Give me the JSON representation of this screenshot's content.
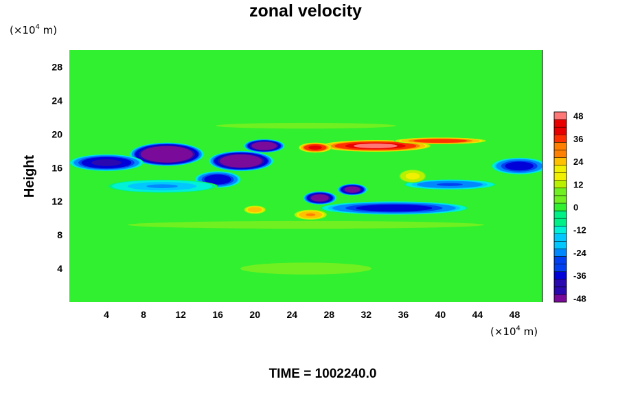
{
  "chart_data": {
    "type": "heatmap",
    "title": "zonal velocity",
    "ylabel": "Height",
    "y_unit": {
      "prefix": "(×10",
      "exp": "4",
      "suffix": " m)"
    },
    "x_unit": {
      "prefix": "(×10",
      "exp": "4",
      "suffix": " m)"
    },
    "xlim": [
      0,
      51
    ],
    "ylim": [
      0,
      30
    ],
    "x_ticks": [
      4,
      8,
      12,
      16,
      20,
      24,
      28,
      32,
      36,
      40,
      44,
      48
    ],
    "y_ticks": [
      4,
      8,
      12,
      16,
      20,
      24,
      28
    ],
    "colorbar": {
      "range": [
        -50,
        50
      ],
      "step": 4,
      "tick_values": [
        48,
        36,
        24,
        12,
        0,
        -12,
        -24,
        -36,
        -48
      ],
      "stops": [
        {
          "v": -50,
          "color": "#7a0a9a"
        },
        {
          "v": -44,
          "color": "#2a0ab0"
        },
        {
          "v": -38,
          "color": "#0000d8"
        },
        {
          "v": -32,
          "color": "#0040f0"
        },
        {
          "v": -26,
          "color": "#0088ff"
        },
        {
          "v": -20,
          "color": "#00c8ff"
        },
        {
          "v": -14,
          "color": "#00f0d8"
        },
        {
          "v": -8,
          "color": "#00f088"
        },
        {
          "v": -2,
          "color": "#30f030"
        },
        {
          "v": 4,
          "color": "#70f020"
        },
        {
          "v": 10,
          "color": "#b8f000"
        },
        {
          "v": 16,
          "color": "#f0f000"
        },
        {
          "v": 22,
          "color": "#ffc000"
        },
        {
          "v": 28,
          "color": "#ff8000"
        },
        {
          "v": 34,
          "color": "#ff3000"
        },
        {
          "v": 40,
          "color": "#e80000"
        },
        {
          "v": 46,
          "color": "#ff7878"
        },
        {
          "v": 50,
          "color": "#ffb0b0"
        }
      ]
    },
    "features": [
      {
        "x": 10.5,
        "y": 17.6,
        "rx": 4.0,
        "ry": 1.4,
        "a": -62
      },
      {
        "x": 4.0,
        "y": 16.6,
        "rx": 4.0,
        "ry": 1.0,
        "a": -44
      },
      {
        "x": 18.5,
        "y": 16.8,
        "rx": 3.5,
        "ry": 1.2,
        "a": -58
      },
      {
        "x": 21.0,
        "y": 18.6,
        "rx": 2.2,
        "ry": 0.8,
        "a": -56
      },
      {
        "x": 16.0,
        "y": 14.6,
        "rx": 2.5,
        "ry": 1.0,
        "a": -40
      },
      {
        "x": 10.0,
        "y": 13.8,
        "rx": 6.0,
        "ry": 0.8,
        "a": -22
      },
      {
        "x": 35.0,
        "y": 11.2,
        "rx": 8.0,
        "ry": 0.8,
        "a": -38
      },
      {
        "x": 27.0,
        "y": 12.4,
        "rx": 1.8,
        "ry": 0.8,
        "a": -52
      },
      {
        "x": 30.5,
        "y": 13.4,
        "rx": 1.6,
        "ry": 0.7,
        "a": -52
      },
      {
        "x": 48.5,
        "y": 16.2,
        "rx": 3.0,
        "ry": 1.0,
        "a": -38
      },
      {
        "x": 41.0,
        "y": 14.0,
        "rx": 5.0,
        "ry": 0.6,
        "a": -30
      },
      {
        "x": 33.0,
        "y": 18.6,
        "rx": 6.0,
        "ry": 0.7,
        "a": 48
      },
      {
        "x": 40.0,
        "y": 19.2,
        "rx": 5.0,
        "ry": 0.4,
        "a": 40
      },
      {
        "x": 26.5,
        "y": 18.4,
        "rx": 1.8,
        "ry": 0.6,
        "a": 44
      },
      {
        "x": 26.0,
        "y": 10.4,
        "rx": 1.8,
        "ry": 0.6,
        "a": 30
      },
      {
        "x": 37.0,
        "y": 15.0,
        "rx": 1.5,
        "ry": 0.8,
        "a": 20
      },
      {
        "x": 20.0,
        "y": 11.0,
        "rx": 1.2,
        "ry": 0.5,
        "a": 28
      },
      {
        "x": 25.5,
        "y": 21.0,
        "rx": 14.0,
        "ry": 0.5,
        "a": 8
      },
      {
        "x": 25.5,
        "y": 9.2,
        "rx": 25.0,
        "ry": 0.6,
        "a": 9
      },
      {
        "x": 25.5,
        "y": 4.0,
        "rx": 25.0,
        "ry": 2.5,
        "a": 6
      },
      {
        "x": 25.5,
        "y": 27.0,
        "rx": 25.0,
        "ry": 2.5,
        "a": 2
      }
    ]
  },
  "time_label": "TIME = 1002240.0"
}
